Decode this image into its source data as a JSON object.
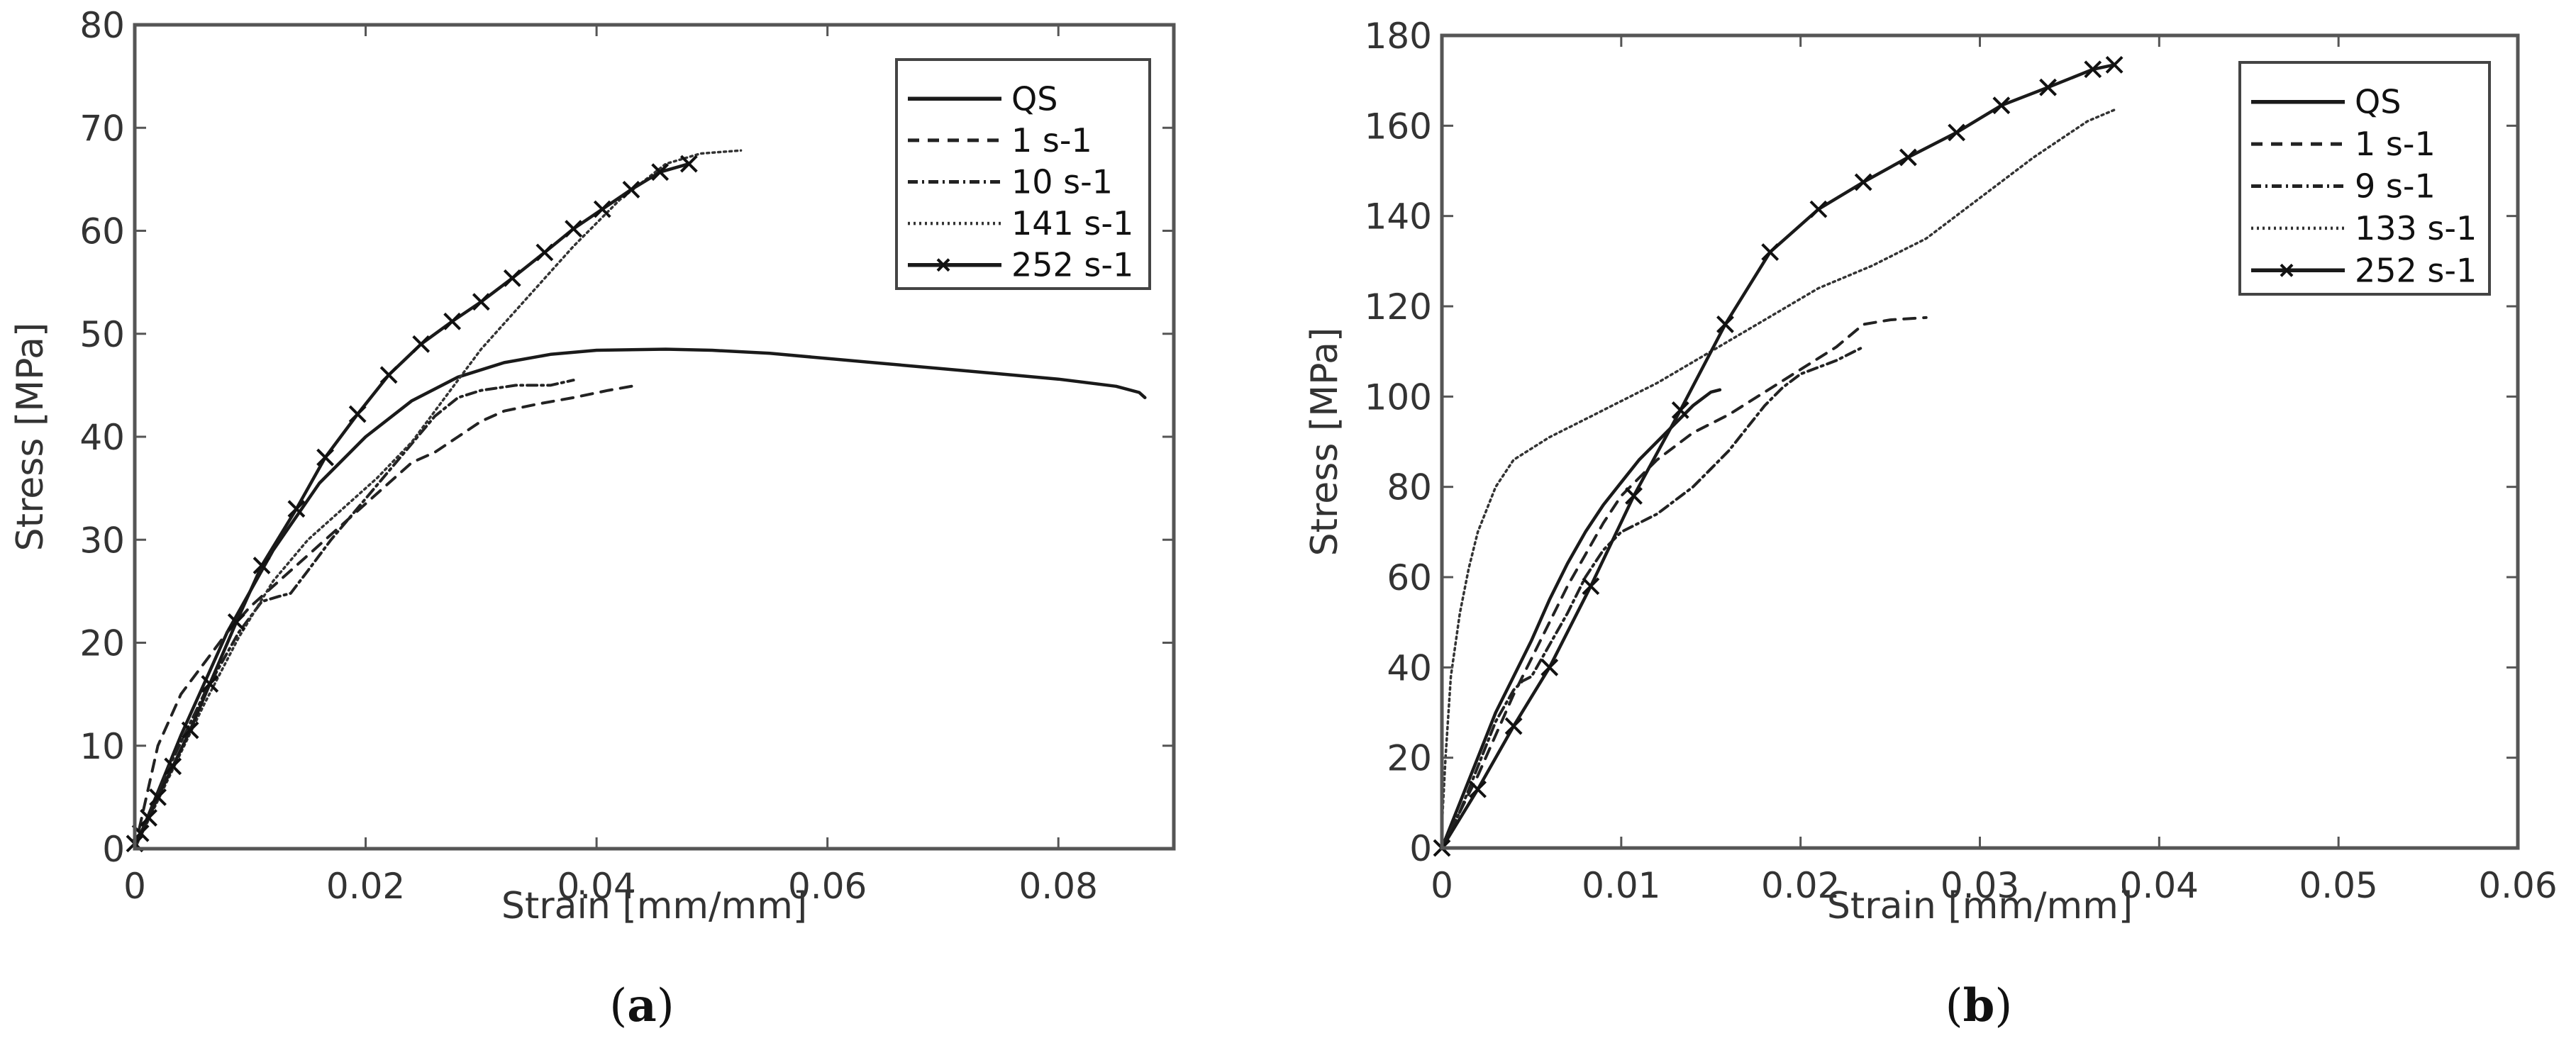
{
  "chart_data": [
    {
      "id": "a",
      "type": "line",
      "caption": "(a)",
      "caption_letter": "a",
      "title": "",
      "xlabel": "Strain [mm/mm]",
      "ylabel": "Stress [MPa]",
      "xlim": [
        0,
        0.09
      ],
      "ylim": [
        0,
        80
      ],
      "xticks": [
        0,
        0.02,
        0.04,
        0.06,
        0.08
      ],
      "xtick_labels": [
        "0",
        "0.02",
        "0.04",
        "0.06",
        "0.08"
      ],
      "yticks": [
        0,
        10,
        20,
        30,
        40,
        50,
        60,
        70,
        80
      ],
      "ytick_labels": [
        "0",
        "10",
        "20",
        "30",
        "40",
        "50",
        "60",
        "70",
        "80"
      ],
      "grid": false,
      "legend_position": "upper right",
      "series": [
        {
          "name": "QS",
          "style": "solid",
          "marker": "none",
          "x": [
            0,
            0.004,
            0.008,
            0.012,
            0.016,
            0.02,
            0.024,
            0.028,
            0.032,
            0.036,
            0.04,
            0.046,
            0.05,
            0.055,
            0.06,
            0.065,
            0.07,
            0.075,
            0.08,
            0.085,
            0.087,
            0.0875
          ],
          "y": [
            0,
            11,
            21,
            29,
            35.5,
            40,
            43.5,
            45.8,
            47.2,
            48,
            48.4,
            48.5,
            48.4,
            48.1,
            47.6,
            47.1,
            46.6,
            46.1,
            45.6,
            44.9,
            44.3,
            43.8
          ]
        },
        {
          "name": "1 s-1",
          "style": "dashed",
          "marker": "none",
          "x": [
            0,
            0.002,
            0.004,
            0.006,
            0.008,
            0.01,
            0.012,
            0.014,
            0.016,
            0.018,
            0.02,
            0.022,
            0.024,
            0.026,
            0.028,
            0.03,
            0.032,
            0.035,
            0.038,
            0.041,
            0.0435
          ],
          "y": [
            0,
            10,
            15,
            18,
            21,
            23.5,
            25.5,
            27.5,
            29.5,
            31.5,
            33.5,
            35.5,
            37.5,
            38.5,
            40,
            41.5,
            42.5,
            43.2,
            43.8,
            44.5,
            45
          ]
        },
        {
          "name": "10 s-1",
          "style": "dashdot",
          "marker": "none",
          "x": [
            0,
            0.003,
            0.006,
            0.009,
            0.011,
            0.0125,
            0.0135,
            0.015,
            0.017,
            0.02,
            0.023,
            0.026,
            0.028,
            0.03,
            0.033,
            0.036,
            0.038
          ],
          "y": [
            0,
            8,
            15,
            21,
            24,
            24.5,
            24.8,
            27,
            30,
            34,
            38,
            42,
            43.8,
            44.5,
            45,
            45,
            45.5
          ]
        },
        {
          "name": "141 s-1",
          "style": "dotted",
          "marker": "none",
          "x": [
            0,
            0.003,
            0.006,
            0.009,
            0.012,
            0.015,
            0.018,
            0.021,
            0.024,
            0.027,
            0.03,
            0.034,
            0.038,
            0.042,
            0.046,
            0.049,
            0.0525
          ],
          "y": [
            0,
            7,
            14,
            20.5,
            26,
            30,
            33,
            36,
            39.5,
            44,
            48.5,
            53.5,
            58.5,
            63,
            66.5,
            67.5,
            67.8
          ]
        },
        {
          "name": "252 s-1",
          "style": "solid",
          "marker": "x",
          "x": [
            0,
            0.0005,
            0.0012,
            0.002,
            0.0033,
            0.0048,
            0.0065,
            0.0088,
            0.011,
            0.014,
            0.0165,
            0.0193,
            0.022,
            0.0248,
            0.0275,
            0.03,
            0.0327,
            0.0355,
            0.038,
            0.0405,
            0.043,
            0.0455,
            0.048
          ],
          "y": [
            0.5,
            1.5,
            3,
            5,
            8,
            11.5,
            16,
            22,
            27.5,
            33,
            38,
            42.2,
            46,
            49,
            51.2,
            53.1,
            55.4,
            57.9,
            60.2,
            62.1,
            64,
            65.7,
            66.5
          ]
        }
      ]
    },
    {
      "id": "b",
      "type": "line",
      "caption": "(b)",
      "caption_letter": "b",
      "title": "",
      "xlabel": "Strain [mm/mm]",
      "ylabel": "Stress [MPa]",
      "xlim": [
        0,
        0.06
      ],
      "ylim": [
        0,
        180
      ],
      "xticks": [
        0,
        0.01,
        0.02,
        0.03,
        0.04,
        0.05,
        0.06
      ],
      "xtick_labels": [
        "0",
        "0.01",
        "0.02",
        "0.03",
        "0.04",
        "0.05",
        "0.06"
      ],
      "yticks": [
        0,
        20,
        40,
        60,
        80,
        100,
        120,
        140,
        160,
        180
      ],
      "ytick_labels": [
        "0",
        "20",
        "40",
        "60",
        "80",
        "100",
        "120",
        "140",
        "160",
        "180"
      ],
      "grid": false,
      "legend_position": "upper right",
      "series": [
        {
          "name": "QS",
          "style": "solid",
          "marker": "none",
          "x": [
            0,
            0.001,
            0.002,
            0.003,
            0.004,
            0.005,
            0.006,
            0.007,
            0.008,
            0.009,
            0.01,
            0.011,
            0.012,
            0.013,
            0.014,
            0.015,
            0.0155
          ],
          "y": [
            0,
            10,
            20,
            30,
            38,
            46,
            55,
            63,
            70,
            76,
            81,
            86,
            90,
            94,
            98,
            101,
            101.5
          ]
        },
        {
          "name": "1 s-1",
          "style": "dashed",
          "marker": "none",
          "x": [
            0,
            0.001,
            0.002,
            0.003,
            0.004,
            0.005,
            0.006,
            0.007,
            0.008,
            0.009,
            0.01,
            0.011,
            0.012,
            0.013,
            0.014,
            0.016,
            0.018,
            0.02,
            0.022,
            0.0235,
            0.025,
            0.027
          ],
          "y": [
            0,
            8,
            16,
            25,
            34,
            42,
            50,
            58,
            65,
            72,
            78,
            82,
            86,
            89,
            92,
            96,
            101,
            106,
            111,
            116,
            117,
            117.5
          ]
        },
        {
          "name": "9 s-1",
          "style": "dashdot",
          "marker": "none",
          "x": [
            0,
            0.001,
            0.002,
            0.003,
            0.004,
            0.0045,
            0.005,
            0.006,
            0.007,
            0.008,
            0.009,
            0.01,
            0.011,
            0.012,
            0.013,
            0.014,
            0.015,
            0.016,
            0.017,
            0.018,
            0.019,
            0.02,
            0.022,
            0.0235
          ],
          "y": [
            0,
            8,
            18,
            28,
            35,
            37,
            38,
            45,
            52,
            60,
            66,
            70,
            72,
            74,
            77,
            80,
            84,
            88,
            93,
            98,
            102,
            105,
            108,
            111
          ]
        },
        {
          "name": "133 s-1",
          "style": "dotted",
          "marker": "none",
          "x": [
            0,
            0.0002,
            0.0005,
            0.001,
            0.0015,
            0.002,
            0.003,
            0.004,
            0.006,
            0.008,
            0.01,
            0.012,
            0.015,
            0.018,
            0.021,
            0.024,
            0.027,
            0.03,
            0.033,
            0.036,
            0.0375
          ],
          "y": [
            5,
            20,
            38,
            52,
            62,
            70,
            80,
            86,
            91,
            95,
            99,
            103,
            110,
            117,
            124,
            129,
            135,
            144,
            153,
            161,
            163.5
          ]
        },
        {
          "name": "252 s-1",
          "style": "solid",
          "marker": "x",
          "x": [
            0,
            0.002,
            0.004,
            0.006,
            0.0083,
            0.0107,
            0.0133,
            0.0158,
            0.0183,
            0.021,
            0.0235,
            0.026,
            0.0287,
            0.0312,
            0.0338,
            0.0363,
            0.0375
          ],
          "y": [
            0,
            13,
            27,
            40,
            58,
            78,
            97,
            116,
            132,
            141.5,
            147.5,
            153,
            158.5,
            164.5,
            168.5,
            172.5,
            173.5
          ]
        }
      ]
    }
  ]
}
